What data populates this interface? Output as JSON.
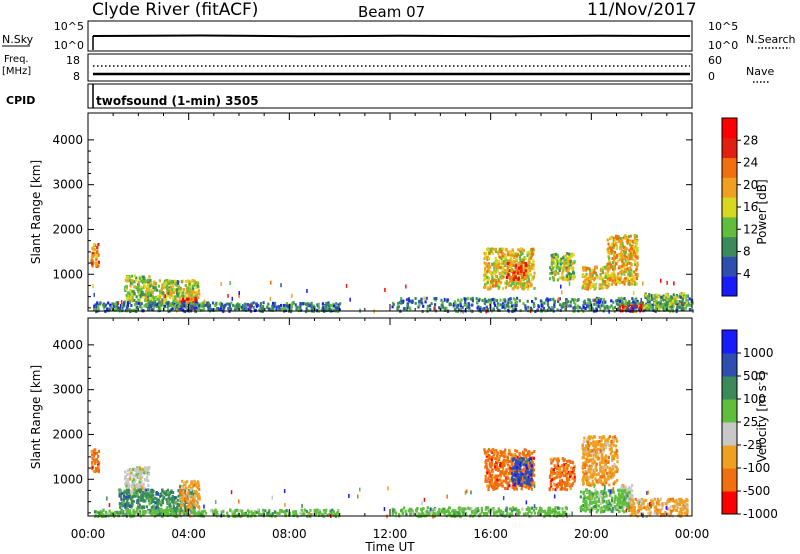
{
  "header": {
    "station": "Clyde River (fitACF)",
    "beam": "Beam 07",
    "date": "11/Nov/2017"
  },
  "nsky_panel": {
    "left_label": "N.Sky",
    "left_ticks": [
      "10^5",
      "10^0"
    ],
    "right_ticks": [
      "10^5",
      "10^0"
    ],
    "right_label": "N.Search"
  },
  "freq_panel": {
    "left_label_1": "Freq.",
    "left_label_2": "[MHz]",
    "left_ticks": [
      "18",
      "8"
    ],
    "right_ticks": [
      "60",
      "0"
    ],
    "right_label": "Nave"
  },
  "cpid_panel": {
    "left_label": "CPID",
    "program": "twofsound (1-min) 3505"
  },
  "colors": {
    "power": [
      "#1a1aff",
      "#2e4fb0",
      "#3a8a5a",
      "#5fbf3c",
      "#d8d820",
      "#f0a020",
      "#f07010",
      "#e02010",
      "#ff0000"
    ],
    "velocity": [
      "#ff0000",
      "#f07010",
      "#f0a020",
      "#c8c8c8",
      "#5fbf3c",
      "#3a8a5a",
      "#2e4fb0",
      "#1a1aff"
    ]
  },
  "chart_data": [
    {
      "type": "heatmap",
      "name": "power",
      "ylabel": "Slant Range [km]",
      "yticks": [
        "4000",
        "3000",
        "2000",
        "1000"
      ],
      "ylim": [
        180,
        4600
      ],
      "xlim": [
        0,
        24
      ],
      "colorbar": {
        "label": "Power [dB]",
        "ticks": [
          "28",
          "24",
          "20",
          "16",
          "12",
          "8",
          "4"
        ],
        "range": [
          0,
          32
        ]
      },
      "blobs": [
        {
          "t0": 0.1,
          "t1": 0.4,
          "r0": 1200,
          "r1": 1700,
          "val": 22
        },
        {
          "t0": 1.4,
          "t1": 2.4,
          "r0": 400,
          "r1": 1000,
          "val": 14
        },
        {
          "t0": 2.3,
          "t1": 4.4,
          "r0": 300,
          "r1": 900,
          "val": 15
        },
        {
          "t0": 3.5,
          "t1": 4.3,
          "r0": 250,
          "r1": 500,
          "val": 26
        },
        {
          "t0": 0.2,
          "t1": 10.0,
          "r0": 200,
          "r1": 400,
          "val": 8
        },
        {
          "t0": 15.7,
          "t1": 17.7,
          "r0": 700,
          "r1": 1600,
          "val": 17
        },
        {
          "t0": 16.6,
          "t1": 17.4,
          "r0": 900,
          "r1": 1300,
          "val": 24
        },
        {
          "t0": 18.3,
          "t1": 19.3,
          "r0": 900,
          "r1": 1500,
          "val": 14
        },
        {
          "t0": 19.6,
          "t1": 20.7,
          "r0": 700,
          "r1": 1200,
          "val": 18
        },
        {
          "t0": 20.6,
          "t1": 21.8,
          "r0": 800,
          "r1": 1900,
          "val": 19
        },
        {
          "t0": 21.0,
          "t1": 22.2,
          "r0": 200,
          "r1": 400,
          "val": 30
        },
        {
          "t0": 12.0,
          "t1": 24.0,
          "r0": 200,
          "r1": 500,
          "val": 8
        },
        {
          "t0": 22.0,
          "t1": 23.8,
          "r0": 250,
          "r1": 600,
          "val": 12
        }
      ]
    },
    {
      "type": "heatmap",
      "name": "velocity",
      "ylabel": "Slant Range [km]",
      "yticks": [
        "4000",
        "3000",
        "2000",
        "1000"
      ],
      "ylim": [
        180,
        4600
      ],
      "xlim": [
        0,
        24
      ],
      "xticks": [
        "00:00",
        "04:00",
        "08:00",
        "12:00",
        "16:00",
        "20:00",
        "00:00"
      ],
      "xlabel": "Time UT",
      "colorbar": {
        "label": "Velocity [m s^-1]",
        "ticks": [
          "1000",
          "500",
          "100",
          "25",
          "-25",
          "-100",
          "-500",
          "-1000"
        ]
      },
      "blobs": [
        {
          "t0": 0.1,
          "t1": 0.4,
          "r0": 1200,
          "r1": 1700,
          "val": 1
        },
        {
          "t0": 1.4,
          "t1": 2.4,
          "r0": 700,
          "r1": 1300,
          "val": 3
        },
        {
          "t0": 1.2,
          "t1": 4.2,
          "r0": 250,
          "r1": 800,
          "val": 5
        },
        {
          "t0": 3.6,
          "t1": 4.4,
          "r0": 400,
          "r1": 1000,
          "val": 2
        },
        {
          "t0": 0.2,
          "t1": 10.0,
          "r0": 200,
          "r1": 350,
          "val": 4
        },
        {
          "t0": 15.7,
          "t1": 17.7,
          "r0": 800,
          "r1": 1700,
          "val": 1
        },
        {
          "t0": 16.8,
          "t1": 17.6,
          "r0": 900,
          "r1": 1500,
          "val": 6
        },
        {
          "t0": 18.3,
          "t1": 19.3,
          "r0": 800,
          "r1": 1500,
          "val": 1
        },
        {
          "t0": 19.6,
          "t1": 21.0,
          "r0": 900,
          "r1": 2000,
          "val": 2
        },
        {
          "t0": 21.1,
          "t1": 21.6,
          "r0": 400,
          "r1": 900,
          "val": 3
        },
        {
          "t0": 19.5,
          "t1": 21.5,
          "r0": 300,
          "r1": 800,
          "val": 4
        },
        {
          "t0": 21.5,
          "t1": 23.8,
          "r0": 200,
          "r1": 600,
          "val": 2
        },
        {
          "t0": 12.0,
          "t1": 19.0,
          "r0": 200,
          "r1": 400,
          "val": 4
        }
      ]
    }
  ]
}
